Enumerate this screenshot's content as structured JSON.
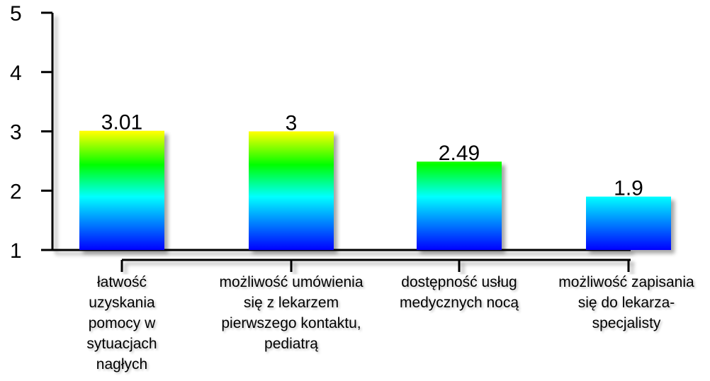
{
  "chart_data": {
    "type": "bar",
    "categories": [
      "łatwość uzyskania pomocy w sytuacjach nagłych",
      "możliwość umówienia się z lekarzem pierwszego kontaktu, pediatrą",
      "dostępność usług medycznych nocą",
      "możliwość zapisania się do lekarza-specjalisty"
    ],
    "values": [
      3.01,
      3,
      2.49,
      1.9
    ],
    "data_labels": [
      "3.01",
      "3",
      "2.49",
      "1.9"
    ],
    "y_ticks": [
      "1",
      "2",
      "3",
      "4",
      "5"
    ],
    "ylim": [
      1,
      5
    ],
    "title": "",
    "xlabel": "",
    "ylabel": "",
    "grid": false,
    "bar_gradient": [
      "#0000ff",
      "#00ffff",
      "#00ff00",
      "#ffff00"
    ]
  }
}
